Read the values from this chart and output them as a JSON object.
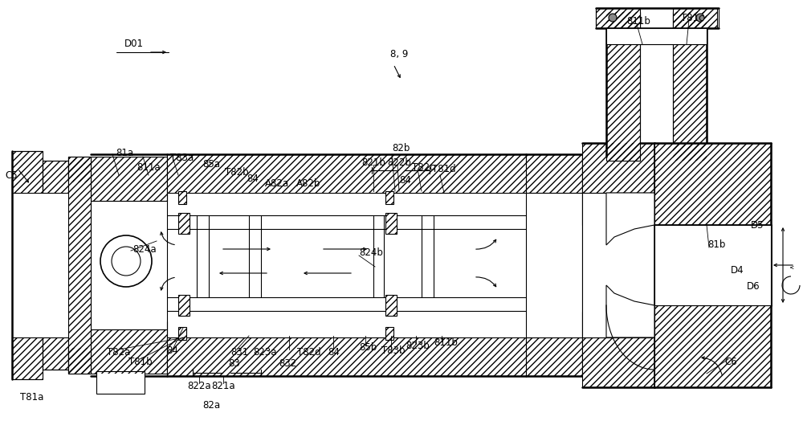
{
  "bg": "#ffffff",
  "lc": "#000000",
  "figsize": [
    10.0,
    5.24
  ],
  "dpi": 100,
  "xlim": [
    0,
    1000
  ],
  "ylim": [
    0,
    524
  ]
}
